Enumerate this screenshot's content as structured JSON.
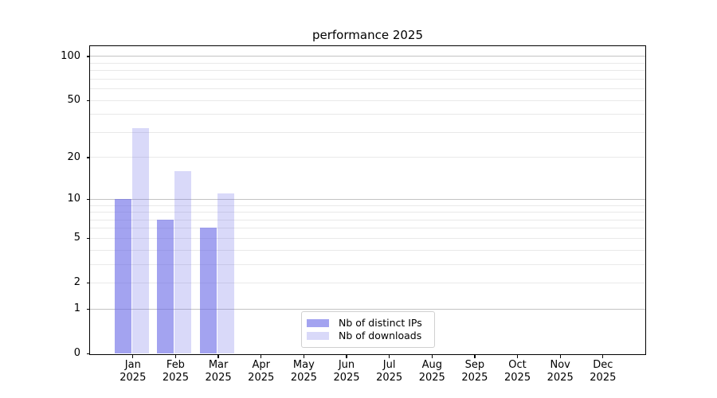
{
  "chart_data": {
    "type": "bar",
    "title": "performance 2025",
    "x_axis": {
      "months": [
        "Jan",
        "Feb",
        "Mar",
        "Apr",
        "May",
        "Jun",
        "Jul",
        "Aug",
        "Sep",
        "Oct",
        "Nov",
        "Dec"
      ],
      "year": "2025"
    },
    "y_axis": {
      "scale": "log(1+x)",
      "ticks": [
        0,
        1,
        2,
        5,
        10,
        20,
        50,
        100
      ],
      "lim": [
        0,
        110
      ]
    },
    "gridlines": {
      "major": [
        1,
        10,
        100
      ],
      "minor": [
        2,
        3,
        4,
        5,
        6,
        7,
        8,
        9,
        20,
        30,
        40,
        50,
        60,
        70,
        80,
        90
      ]
    },
    "series": [
      {
        "name": "Nb of distinct IPs",
        "color": "rgba(102,102,230,0.6)",
        "values": [
          10,
          7,
          6,
          null,
          null,
          null,
          null,
          null,
          null,
          null,
          null,
          null
        ]
      },
      {
        "name": "Nb of downloads",
        "color": "rgba(102,102,230,0.25)",
        "values": [
          32,
          16,
          11,
          null,
          null,
          null,
          null,
          null,
          null,
          null,
          null,
          null
        ]
      }
    ],
    "legend_position": "lower center",
    "grid": true
  }
}
